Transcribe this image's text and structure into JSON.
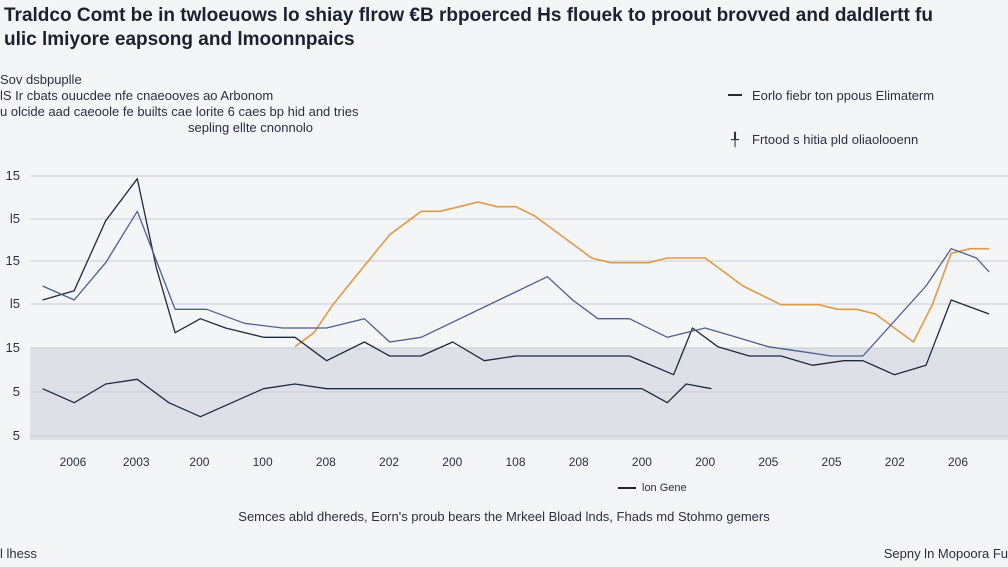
{
  "title_lines": [
    "Traldco Comt be in twloeuows lo shiay flrow €B rbpoerced Hs flouek to proout brovved and daldlertt fu",
    "ulic lmiyore eapsong and lmoonnpaics"
  ],
  "subtitle_lines": [
    "Sov dsbpuplle",
    "lS Ir cbats ouucdee nfe cnaeooves ao Arbonom",
    "u olcide aad caeoole fe builts cae lorite 6 caes bp hid and tries",
    "sepling ellte cnonnolo"
  ],
  "legend": {
    "series_a": "Eorlo fiebr ton ppous Elimaterm",
    "series_b": "Frtood s hitia pld oliaolooenn"
  },
  "inline_legend": "lon Gene",
  "source": "Semces abld dhereds, Eorn's proub bears the Mrkeel Bload lnds, Fhads md Stohmo gemers",
  "footer_left": "l lhess",
  "footer_right": "Sepny ln Mopoora Fu",
  "colors": {
    "background": "#f4f5f7",
    "band": "#dde0e6",
    "grid": "#c9ccd3",
    "orange": "#e09a45",
    "navy": "#1f2a3c",
    "blue": "#4d5f90"
  },
  "chart_data": {
    "type": "line",
    "y_tick_labels": [
      "15",
      "l5",
      "15",
      "l5",
      "15",
      "5",
      "5"
    ],
    "x_tick_labels": [
      "2006",
      "2003",
      "200",
      "100",
      "208",
      "202",
      "200",
      "108",
      "208",
      "200",
      "200",
      "205",
      "205",
      "202",
      "206"
    ],
    "series": [
      {
        "name": "Eorlo fiebr ton ppous Elimaterm",
        "color": "#e09a45",
        "points": [
          [
            5.0,
            2.0
          ],
          [
            5.3,
            2.3
          ],
          [
            5.6,
            2.9
          ],
          [
            5.9,
            3.4
          ],
          [
            6.2,
            3.9
          ],
          [
            6.5,
            4.4
          ],
          [
            6.8,
            4.7
          ],
          [
            7.0,
            4.9
          ],
          [
            7.3,
            4.9
          ],
          [
            7.6,
            5.0
          ],
          [
            7.9,
            5.1
          ],
          [
            8.2,
            5.0
          ],
          [
            8.5,
            5.0
          ],
          [
            8.8,
            4.8
          ],
          [
            9.1,
            4.5
          ],
          [
            9.4,
            4.2
          ],
          [
            9.7,
            3.9
          ],
          [
            10.0,
            3.8
          ],
          [
            10.3,
            3.8
          ],
          [
            10.6,
            3.8
          ],
          [
            10.9,
            3.9
          ],
          [
            11.2,
            3.9
          ],
          [
            11.5,
            3.9
          ],
          [
            11.8,
            3.6
          ],
          [
            12.1,
            3.3
          ],
          [
            12.4,
            3.1
          ],
          [
            12.7,
            2.9
          ],
          [
            13.0,
            2.9
          ],
          [
            13.3,
            2.9
          ],
          [
            13.6,
            2.8
          ],
          [
            13.9,
            2.8
          ],
          [
            14.2,
            2.7
          ],
          [
            14.5,
            2.4
          ],
          [
            14.8,
            2.1
          ],
          [
            15.1,
            2.9
          ],
          [
            15.4,
            4.0
          ],
          [
            15.7,
            4.1
          ],
          [
            16.0,
            4.1
          ]
        ]
      },
      {
        "name": "Frtood s hitia pld oliaolooenn",
        "color": "#1f2a3c",
        "points": [
          [
            1.0,
            3.0
          ],
          [
            1.5,
            3.2
          ],
          [
            2.0,
            4.7
          ],
          [
            2.5,
            5.6
          ],
          [
            2.8,
            3.7
          ],
          [
            3.1,
            2.3
          ],
          [
            3.5,
            2.6
          ],
          [
            3.9,
            2.4
          ],
          [
            4.5,
            2.2
          ],
          [
            5.0,
            2.2
          ],
          [
            5.5,
            1.7
          ],
          [
            6.1,
            2.1
          ],
          [
            6.5,
            1.8
          ],
          [
            7.0,
            1.8
          ],
          [
            7.5,
            2.1
          ],
          [
            8.0,
            1.7
          ],
          [
            8.5,
            1.8
          ],
          [
            9.1,
            1.8
          ],
          [
            9.8,
            1.8
          ],
          [
            10.3,
            1.8
          ],
          [
            11.0,
            1.4
          ],
          [
            11.3,
            2.4
          ],
          [
            11.7,
            2.0
          ],
          [
            12.2,
            1.8
          ],
          [
            12.7,
            1.8
          ],
          [
            13.2,
            1.6
          ],
          [
            13.7,
            1.7
          ],
          [
            14.0,
            1.7
          ],
          [
            14.5,
            1.4
          ],
          [
            15.0,
            1.6
          ],
          [
            15.4,
            3.0
          ],
          [
            16.0,
            2.7
          ]
        ]
      },
      {
        "name": "",
        "color": "#4d5f90",
        "points": [
          [
            1.0,
            3.3
          ],
          [
            1.5,
            3.0
          ],
          [
            2.0,
            3.8
          ],
          [
            2.5,
            4.9
          ],
          [
            3.1,
            2.8
          ],
          [
            3.6,
            2.8
          ],
          [
            4.2,
            2.5
          ],
          [
            4.8,
            2.4
          ],
          [
            5.5,
            2.4
          ],
          [
            6.1,
            2.6
          ],
          [
            6.5,
            2.1
          ],
          [
            7.0,
            2.2
          ],
          [
            9.0,
            3.5
          ],
          [
            9.4,
            3.0
          ],
          [
            9.8,
            2.6
          ],
          [
            10.3,
            2.6
          ],
          [
            10.9,
            2.2
          ],
          [
            11.5,
            2.4
          ],
          [
            12.0,
            2.2
          ],
          [
            12.5,
            2.0
          ],
          [
            13.0,
            1.9
          ],
          [
            13.5,
            1.8
          ],
          [
            14.0,
            1.8
          ],
          [
            15.0,
            3.3
          ],
          [
            15.4,
            4.1
          ],
          [
            15.8,
            3.9
          ],
          [
            16.0,
            3.6
          ]
        ]
      },
      {
        "name": "",
        "color": "#1f2a3c",
        "points": [
          [
            1.0,
            1.1
          ],
          [
            1.5,
            0.8
          ],
          [
            2.0,
            1.2
          ],
          [
            2.5,
            1.3
          ],
          [
            3.0,
            0.8
          ],
          [
            3.5,
            0.5
          ],
          [
            4.0,
            0.8
          ],
          [
            4.5,
            1.1
          ],
          [
            5.0,
            1.2
          ],
          [
            5.5,
            1.1
          ],
          [
            6.0,
            1.1
          ],
          [
            6.5,
            1.1
          ],
          [
            7.0,
            1.1
          ],
          [
            7.5,
            1.1
          ],
          [
            8.0,
            1.1
          ],
          [
            8.5,
            1.1
          ],
          [
            9.0,
            1.1
          ],
          [
            9.5,
            1.1
          ],
          [
            10.0,
            1.1
          ],
          [
            10.5,
            1.1
          ],
          [
            10.9,
            0.8
          ],
          [
            11.2,
            1.2
          ],
          [
            11.6,
            1.1
          ]
        ]
      }
    ],
    "ylim": [
      0,
      6
    ],
    "xlim": [
      0.8,
      16.3
    ],
    "grid": true,
    "legend_position": "top-right"
  }
}
